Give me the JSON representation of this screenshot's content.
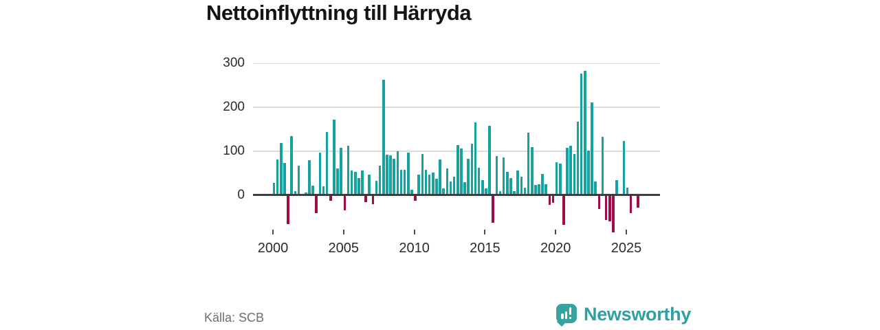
{
  "title": "Nettoinflyttning till Härryda",
  "source": "Källa: SCB",
  "logo": {
    "text": "Newsworthy"
  },
  "colors": {
    "positive": "#16a2a0",
    "negative": "#a00d49",
    "grid": "#dddddd",
    "zero_line": "#3d3d3d",
    "axis_text": "#2b2b2b",
    "tick_mark": "#4a4a4a",
    "source_text": "#6e6e78",
    "title_text": "#141414",
    "logo_teal": "#35a39e",
    "logo_text_teal": "#2f9fa0",
    "background": "#ffffff"
  },
  "chart_data": {
    "type": "bar",
    "title": "Nettoinflyttning till Härryda",
    "x_start": "2000-Q1",
    "frequency": "quarterly",
    "values": [
      28,
      81,
      119,
      73,
      -67,
      134,
      9,
      67,
      2,
      5,
      80,
      21,
      -42,
      97,
      20,
      144,
      -13,
      172,
      61,
      108,
      -36,
      112,
      55,
      52,
      38,
      55,
      -16,
      46,
      -21,
      32,
      66,
      263,
      92,
      90,
      82,
      100,
      57,
      57,
      96,
      11,
      -13,
      46,
      93,
      57,
      47,
      51,
      37,
      81,
      15,
      61,
      30,
      42,
      114,
      106,
      29,
      83,
      117,
      166,
      62,
      33,
      15,
      157,
      -64,
      88,
      9,
      85,
      53,
      38,
      9,
      55,
      42,
      17,
      142,
      109,
      22,
      24,
      48,
      24,
      -22,
      -18,
      75,
      71,
      -68,
      107,
      113,
      93,
      167,
      277,
      283,
      102,
      211,
      31,
      -32,
      133,
      -58,
      -60,
      -86,
      34,
      0,
      124,
      16,
      -42,
      0,
      -29
    ],
    "xticks": [
      "2000",
      "2005",
      "2010",
      "2015",
      "2020",
      "2025"
    ],
    "yticks": [
      0,
      100,
      200,
      300
    ],
    "ylim": [
      -100,
      310
    ],
    "grid": true,
    "legend": null,
    "source": "Källa: SCB"
  }
}
